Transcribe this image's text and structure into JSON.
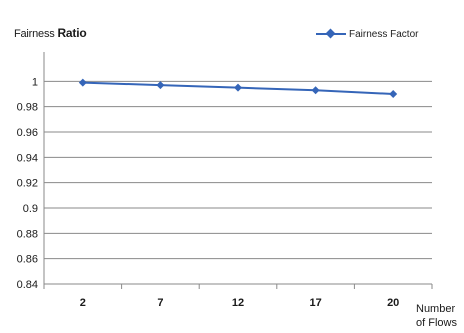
{
  "chart_data": {
    "type": "line",
    "categories": [
      "2",
      "7",
      "12",
      "17",
      "20"
    ],
    "series": [
      {
        "name": "Fairness Factor",
        "values": [
          0.999,
          0.997,
          0.995,
          0.993,
          0.99
        ],
        "color": "#3565b8"
      }
    ],
    "ylabel_part1": "Fairness",
    "ylabel_part2": "Ratio",
    "xlabel_line1": "Number",
    "xlabel_line2": "of Flows",
    "ylim": [
      0.84,
      1.02
    ],
    "yticks": [
      0.84,
      0.86,
      0.88,
      0.9,
      0.92,
      0.94,
      0.96,
      0.98,
      1
    ],
    "ytick_labels": [
      "0.84",
      "0.86",
      "0.88",
      "0.9",
      "0.92",
      "0.94",
      "0.96",
      "0.98",
      "1"
    ],
    "grid": true,
    "legend_position": "top-right",
    "marker": "diamond-icon"
  }
}
